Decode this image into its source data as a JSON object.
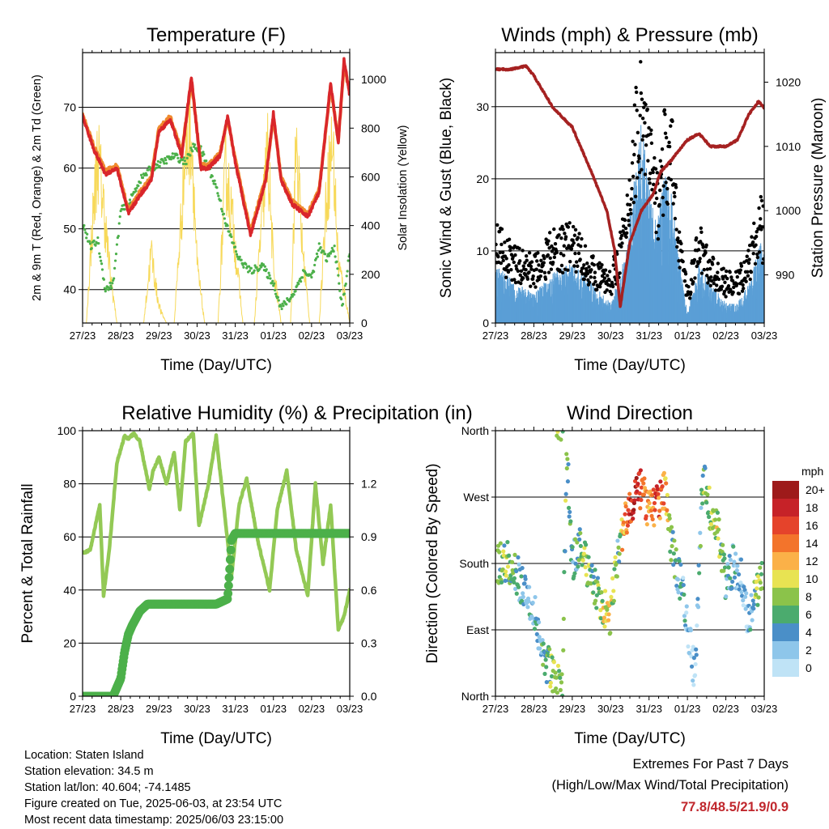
{
  "colors": {
    "temp_red": "#d9262b",
    "temp_orange": "#f08a2e",
    "dewpoint": "#4cb04a",
    "solar": "#f7d95a",
    "gust": "#000000",
    "wind": "#5b9fd6",
    "pressure": "#a52121",
    "rh": "#93c955",
    "precip": "#4cb04a",
    "extremes": "#c0272d"
  },
  "info": {
    "location": "Location: Staten Island",
    "elevation": "Station elevation: 34.5 m",
    "latlon": "Station lat/lon: 40.604; -74.1485",
    "created": "Figure created on Tue, 2025-06-03, at 23:54 UTC",
    "recent": "Most recent data timestamp: 2025/06/03 23:15:00"
  },
  "extremes": {
    "title": "Extremes For Past 7 Days",
    "subtitle": "(High/Low/Max Wind/Total Precipitation)",
    "values": "77.8/48.5/21.9/0.9"
  },
  "chart_data": [
    {
      "type": "line",
      "title": "Temperature (F)",
      "xlabel": "Time (Day/UTC)",
      "ylabel": "2m & 9m T (Red, Orange) & 2m Td (Green)",
      "ylabel_right": "Solar Insolation (Yellow)",
      "x_ticks": [
        "27/23",
        "28/23",
        "29/23",
        "30/23",
        "31/23",
        "01/23",
        "02/23",
        "03/23"
      ],
      "xlim": [
        0,
        7
      ],
      "ylim": [
        34.5,
        79
      ],
      "y_ticks": [
        40,
        50,
        60,
        70
      ],
      "y2lim": [
        0,
        1110
      ],
      "y2_ticks": [
        0,
        200,
        400,
        600,
        800,
        1000
      ],
      "grid": "horizontal",
      "series": [
        {
          "name": "2m T",
          "x": [
            0,
            0.3,
            0.6,
            0.9,
            1.2,
            1.5,
            1.8,
            2.0,
            2.3,
            2.6,
            2.85,
            3.1,
            3.3,
            3.6,
            3.8,
            4.0,
            4.4,
            4.8,
            5.0,
            5.2,
            5.5,
            5.9,
            6.2,
            6.5,
            6.7,
            6.85,
            7.0
          ],
          "y": [
            68.5,
            63,
            59,
            60,
            52.5,
            55.5,
            58,
            66,
            68,
            62,
            75,
            60,
            60,
            62,
            68.5,
            61,
            49,
            58,
            69,
            58,
            54,
            52,
            56,
            74,
            64,
            77.8,
            72
          ]
        },
        {
          "name": "9m T",
          "x": [
            0,
            0.3,
            0.6,
            0.9,
            1.2,
            1.5,
            1.8,
            2.0,
            2.3,
            2.6,
            2.85,
            3.1,
            3.3,
            3.6,
            3.8,
            4.0,
            4.4,
            4.8,
            5.0,
            5.2,
            5.5,
            5.9,
            6.2,
            6.5,
            6.7,
            6.85,
            7.0
          ],
          "y": [
            68.8,
            63.5,
            59.5,
            60.5,
            53,
            56,
            58.5,
            66.5,
            68.5,
            62.5,
            74.5,
            60.5,
            60.5,
            62.5,
            68,
            61.5,
            49.5,
            58.5,
            68.5,
            58.5,
            54.5,
            52.5,
            56.5,
            73.5,
            64.5,
            77,
            72.5
          ]
        },
        {
          "name": "2m Td",
          "x": [
            0,
            0.2,
            0.4,
            0.6,
            0.8,
            1.0,
            1.2,
            1.5,
            1.8,
            2.1,
            2.4,
            2.7,
            2.9,
            3.1,
            3.3,
            3.5,
            3.8,
            4.1,
            4.4,
            4.7,
            5.0,
            5.2,
            5.5,
            5.8,
            6.0,
            6.2,
            6.4,
            6.6,
            6.8,
            7.0
          ],
          "y": [
            51,
            47,
            48,
            40,
            41,
            53,
            54,
            58,
            60,
            61,
            62,
            61,
            63.5,
            63,
            60,
            57,
            50,
            45,
            43,
            44,
            41,
            37,
            39,
            43,
            42,
            47,
            45,
            47,
            37,
            46
          ]
        },
        {
          "name": "Solar",
          "axis": "right",
          "x": [
            0,
            0.1,
            0.25,
            0.4,
            0.55,
            0.7,
            0.9,
            1.0,
            1.2,
            1.6,
            1.8,
            1.95,
            2.05,
            2.2,
            2.4,
            2.55,
            2.7,
            2.85,
            3.0,
            3.2,
            3.55,
            3.75,
            3.95,
            4.2,
            4.5,
            4.7,
            4.85,
            5.0,
            5.2,
            5.45,
            5.6,
            5.75,
            5.95,
            6.2,
            6.4,
            6.55,
            6.7,
            6.9,
            7.0
          ],
          "y": [
            0,
            0,
            500,
            900,
            620,
            300,
            0,
            0,
            0,
            0,
            380,
            150,
            60,
            0,
            0,
            450,
            920,
            1030,
            300,
            0,
            0,
            820,
            500,
            0,
            0,
            560,
            910,
            300,
            0,
            0,
            980,
            420,
            0,
            0,
            690,
            960,
            320,
            120,
            0
          ]
        }
      ]
    },
    {
      "type": "scatter",
      "title": "Winds (mph) & Pressure (mb)",
      "xlabel": "Time (Day/UTC)",
      "ylabel": "Sonic Wind & Gust (Blue, Black)",
      "ylabel_right": "Station Pressure (Maroon)",
      "x_ticks": [
        "27/23",
        "28/23",
        "29/23",
        "30/23",
        "31/23",
        "01/23",
        "02/23",
        "03/23"
      ],
      "xlim": [
        0,
        7
      ],
      "ylim": [
        0,
        37.5
      ],
      "y_ticks": [
        0,
        10,
        20,
        30
      ],
      "y2lim": [
        982.5,
        1024.6
      ],
      "y2_ticks": [
        990,
        1000,
        1010,
        1020
      ],
      "grid": "horizontal",
      "series": [
        {
          "name": "Gust",
          "x": [
            0,
            0.5,
            1.0,
            1.5,
            2.0,
            2.5,
            3.0,
            3.4,
            3.6,
            3.8,
            4.0,
            4.2,
            4.4,
            4.6,
            4.8,
            5.0,
            5.3,
            5.6,
            6.0,
            6.3,
            6.6,
            6.9,
            7.0
          ],
          "y": [
            12,
            9,
            8,
            11,
            12,
            8,
            6,
            14,
            26,
            33,
            25,
            18,
            25,
            24,
            12,
            4,
            12,
            8,
            6,
            6,
            9,
            15,
            13
          ]
        },
        {
          "name": "Wind",
          "x": [
            0,
            0.5,
            1.0,
            1.5,
            2.0,
            2.5,
            3.0,
            3.4,
            3.6,
            3.8,
            4.0,
            4.2,
            4.4,
            4.6,
            4.8,
            5.0,
            5.3,
            5.6,
            6.0,
            6.3,
            6.6,
            6.9,
            7.0
          ],
          "y": [
            6,
            4,
            3,
            5,
            6,
            4,
            2,
            7,
            14,
            20,
            14,
            10,
            15,
            13,
            6,
            1,
            6,
            4,
            2,
            2,
            4,
            8,
            7
          ]
        },
        {
          "name": "Pressure",
          "axis": "right",
          "x": [
            0,
            0.4,
            0.8,
            1.0,
            1.5,
            2.0,
            2.5,
            2.9,
            3.1,
            3.25,
            3.5,
            3.8,
            4.1,
            4.3,
            4.6,
            5.0,
            5.3,
            5.6,
            6.0,
            6.3,
            6.6,
            6.85,
            7.0
          ],
          "y": [
            1022,
            1022,
            1022.5,
            1021,
            1016,
            1013,
            1006,
            1000,
            994,
            985,
            995,
            1000,
            1002.5,
            1006,
            1008,
            1011,
            1012,
            1010,
            1010,
            1011,
            1015,
            1017,
            1016
          ]
        }
      ]
    },
    {
      "type": "line",
      "title": "Relative Humidity (%) & Precipitation (in)",
      "xlabel": "Time (Day/UTC)",
      "ylabel": "Percent & Total Rainfall",
      "x_ticks": [
        "27/23",
        "28/23",
        "29/23",
        "30/23",
        "31/23",
        "01/23",
        "02/23",
        "03/23"
      ],
      "xlim": [
        0,
        7
      ],
      "ylim": [
        0,
        100
      ],
      "y_ticks": [
        0,
        20,
        40,
        60,
        80,
        100
      ],
      "y2lim": [
        0,
        1.5
      ],
      "y2_ticks": [
        "0.0",
        "0.3",
        "0.6",
        "0.9",
        "1.2"
      ],
      "grid": "horizontal",
      "series": [
        {
          "name": "RH",
          "x": [
            0,
            0.2,
            0.45,
            0.55,
            0.7,
            0.9,
            1.1,
            1.2,
            1.35,
            1.5,
            1.75,
            1.85,
            2.0,
            2.2,
            2.4,
            2.55,
            2.7,
            2.9,
            3.05,
            3.3,
            3.5,
            3.75,
            3.9,
            4.1,
            4.3,
            4.6,
            4.9,
            5.1,
            5.35,
            5.6,
            5.9,
            6.1,
            6.3,
            6.5,
            6.7,
            6.85,
            7.0
          ],
          "y": [
            54,
            55,
            72,
            38,
            55,
            88,
            98,
            97,
            99,
            96,
            78,
            85,
            90,
            80,
            92,
            70,
            96,
            99,
            64,
            80,
            98,
            65,
            45,
            72,
            82,
            58,
            40,
            70,
            85,
            55,
            38,
            80,
            50,
            72,
            25,
            30,
            40
          ]
        },
        {
          "name": "Total Rainfall",
          "axis": "right",
          "x": [
            0,
            0.6,
            0.8,
            1.0,
            1.1,
            1.2,
            1.3,
            1.5,
            1.7,
            2.0,
            2.5,
            3.0,
            3.5,
            3.8,
            3.85,
            3.9,
            4.0,
            4.5,
            5.0,
            6.0,
            7.0
          ],
          "y": [
            0,
            0,
            0,
            0.1,
            0.25,
            0.35,
            0.4,
            0.48,
            0.52,
            0.52,
            0.52,
            0.52,
            0.52,
            0.55,
            0.7,
            0.88,
            0.92,
            0.92,
            0.92,
            0.92,
            0.92
          ]
        }
      ]
    },
    {
      "type": "scatter",
      "title": "Wind Direction",
      "xlabel": "Time (Day/UTC)",
      "ylabel": "Direction (Colored By Speed)",
      "x_ticks": [
        "27/23",
        "28/23",
        "29/23",
        "30/23",
        "31/23",
        "01/23",
        "02/23",
        "03/23"
      ],
      "xlim": [
        0,
        7
      ],
      "ylim": [
        0,
        360
      ],
      "y_ticks": [
        "North",
        "East",
        "South",
        "West",
        "North"
      ],
      "grid": "horizontal",
      "colorbar": {
        "label": "mph",
        "levels": [
          "0",
          "2",
          "4",
          "6",
          "8",
          "10",
          "12",
          "14",
          "16",
          "18",
          "20+"
        ],
        "colors": [
          "#bfe3f6",
          "#8ec6ea",
          "#4a8fc8",
          "#4bab6e",
          "#8bc34a",
          "#e8e352",
          "#fbb148",
          "#f3742b",
          "#e5432b",
          "#c62228",
          "#9e1a1a"
        ]
      },
      "series": [
        {
          "name": "direction",
          "x": [
            0.1,
            0.3,
            0.5,
            0.7,
            0.9,
            1.0,
            1.2,
            1.4,
            1.6,
            1.75,
            1.85,
            2.0,
            2.2,
            2.4,
            2.6,
            2.8,
            3.0,
            3.2,
            3.4,
            3.6,
            3.8,
            4.0,
            4.2,
            4.4,
            4.6,
            4.8,
            5.0,
            5.2,
            5.4,
            5.6,
            5.8,
            6.0,
            6.2,
            6.4,
            6.6,
            6.8,
            6.9
          ],
          "y": [
            180,
            185,
            170,
            150,
            130,
            120,
            60,
            40,
            20,
            10,
            340,
            180,
            200,
            175,
            150,
            120,
            110,
            200,
            240,
            270,
            280,
            250,
            260,
            280,
            200,
            160,
            100,
            20,
            300,
            250,
            220,
            150,
            180,
            160,
            100,
            140,
            160
          ],
          "speed": [
            6,
            8,
            5,
            4,
            4,
            3,
            4,
            6,
            8,
            6,
            7,
            5,
            6,
            8,
            7,
            9,
            10,
            5,
            15,
            18,
            17,
            12,
            16,
            14,
            6,
            4,
            2,
            1,
            6,
            8,
            9,
            4,
            3,
            2,
            2,
            8,
            9
          ]
        }
      ]
    }
  ]
}
